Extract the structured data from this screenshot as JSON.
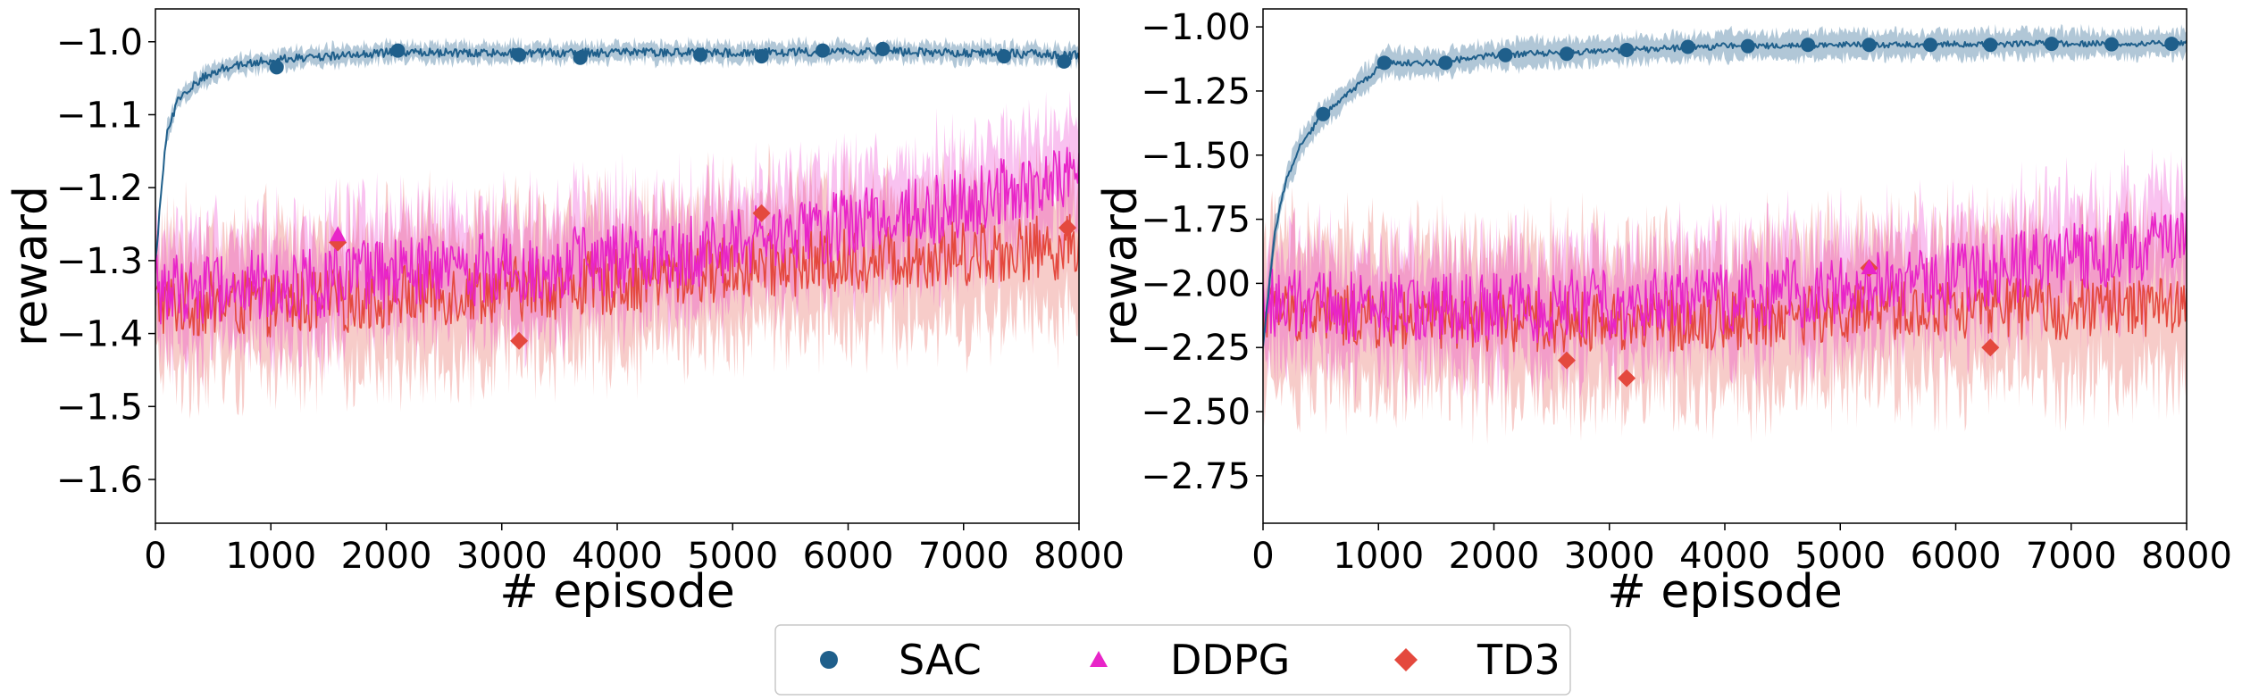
{
  "colors": {
    "SAC": "#1f5f8b",
    "DDPG": "#e825c8",
    "TD3": "#e4493e"
  },
  "legend": {
    "position": "bottom-center",
    "items": [
      {
        "name": "SAC",
        "marker": "circle"
      },
      {
        "name": "DDPG",
        "marker": "triangle"
      },
      {
        "name": "TD3",
        "marker": "diamond"
      }
    ]
  },
  "chart_data": [
    {
      "type": "line",
      "title": "",
      "xlabel": "# episode",
      "ylabel": "reward",
      "xlim": [
        0,
        8000
      ],
      "ylim": [
        -1.66,
        -0.955
      ],
      "xticks": [
        0,
        1000,
        2000,
        3000,
        4000,
        5000,
        6000,
        7000,
        8000
      ],
      "yticks": [
        -1.6,
        -1.5,
        -1.4,
        -1.3,
        -1.2,
        -1.1,
        -1.0
      ],
      "ytick_labels": [
        "−1.6",
        "−1.5",
        "−1.4",
        "−1.3",
        "−1.2",
        "−1.1",
        "−1.0"
      ],
      "grid": false,
      "series": [
        {
          "name": "SAC",
          "x": [
            0,
            100,
            200,
            400,
            600,
            800,
            1000,
            1500,
            2000,
            3000,
            4000,
            5000,
            6000,
            7000,
            8000
          ],
          "values": [
            -1.3,
            -1.12,
            -1.08,
            -1.05,
            -1.035,
            -1.03,
            -1.025,
            -1.02,
            -1.015,
            -1.015,
            -1.015,
            -1.015,
            -1.013,
            -1.015,
            -1.018
          ],
          "band": 0.012,
          "noise": 0.006,
          "markers": [
            {
              "x": 1050,
              "y": -1.035
            },
            {
              "x": 2100,
              "y": -1.012
            },
            {
              "x": 3150,
              "y": -1.018
            },
            {
              "x": 3680,
              "y": -1.022
            },
            {
              "x": 4720,
              "y": -1.018
            },
            {
              "x": 5250,
              "y": -1.02
            },
            {
              "x": 5780,
              "y": -1.012
            },
            {
              "x": 6300,
              "y": -1.01
            },
            {
              "x": 7350,
              "y": -1.02
            },
            {
              "x": 7870,
              "y": -1.027
            }
          ]
        },
        {
          "name": "DDPG",
          "x": [
            0,
            1000,
            2000,
            3000,
            4000,
            5000,
            6000,
            7000,
            8000
          ],
          "values": [
            -1.34,
            -1.335,
            -1.32,
            -1.31,
            -1.3,
            -1.28,
            -1.25,
            -1.22,
            -1.19
          ],
          "band": 0.07,
          "noise": 0.05,
          "markers": [
            {
              "x": 1580,
              "y": -1.265
            }
          ]
        },
        {
          "name": "TD3",
          "x": [
            0,
            1000,
            2000,
            3000,
            4000,
            5000,
            6000,
            7000,
            8000
          ],
          "values": [
            -1.36,
            -1.36,
            -1.35,
            -1.34,
            -1.33,
            -1.31,
            -1.3,
            -1.29,
            -1.28
          ],
          "band": 0.09,
          "noise": 0.045,
          "markers": [
            {
              "x": 1580,
              "y": -1.275
            },
            {
              "x": 3150,
              "y": -1.41
            },
            {
              "x": 5250,
              "y": -1.235
            },
            {
              "x": 7900,
              "y": -1.255
            }
          ]
        }
      ]
    },
    {
      "type": "line",
      "title": "",
      "xlabel": "# episode",
      "ylabel": "reward",
      "xlim": [
        0,
        8000
      ],
      "ylim": [
        -2.935,
        -0.93
      ],
      "xticks": [
        0,
        1000,
        2000,
        3000,
        4000,
        5000,
        6000,
        7000,
        8000
      ],
      "yticks": [
        -2.75,
        -2.5,
        -2.25,
        -2.0,
        -1.75,
        -1.5,
        -1.25,
        -1.0
      ],
      "ytick_labels": [
        "−2.75",
        "−2.50",
        "−2.25",
        "−2.00",
        "−1.75",
        "−1.50",
        "−1.25",
        "−1.00"
      ],
      "grid": false,
      "series": [
        {
          "name": "SAC",
          "x": [
            0,
            100,
            200,
            300,
            500,
            700,
            900,
            1050,
            1500,
            2000,
            2600,
            3200,
            4000,
            5000,
            6000,
            7000,
            8000
          ],
          "values": [
            -2.25,
            -1.8,
            -1.6,
            -1.48,
            -1.35,
            -1.27,
            -1.2,
            -1.14,
            -1.14,
            -1.11,
            -1.1,
            -1.09,
            -1.075,
            -1.07,
            -1.068,
            -1.065,
            -1.065
          ],
          "band": 0.05,
          "noise": 0.012,
          "markers": [
            {
              "x": 520,
              "y": -1.34
            },
            {
              "x": 1050,
              "y": -1.14
            },
            {
              "x": 1580,
              "y": -1.14
            },
            {
              "x": 2100,
              "y": -1.11
            },
            {
              "x": 2630,
              "y": -1.105
            },
            {
              "x": 3150,
              "y": -1.09
            },
            {
              "x": 3680,
              "y": -1.078
            },
            {
              "x": 4200,
              "y": -1.075
            },
            {
              "x": 4720,
              "y": -1.07
            },
            {
              "x": 5250,
              "y": -1.07
            },
            {
              "x": 5780,
              "y": -1.07
            },
            {
              "x": 6300,
              "y": -1.07
            },
            {
              "x": 6830,
              "y": -1.066
            },
            {
              "x": 7350,
              "y": -1.068
            },
            {
              "x": 7870,
              "y": -1.066
            }
          ]
        },
        {
          "name": "DDPG",
          "x": [
            0,
            1000,
            2000,
            3000,
            4000,
            5000,
            6000,
            7000,
            8000
          ],
          "values": [
            -2.08,
            -2.1,
            -2.1,
            -2.08,
            -2.06,
            -2.02,
            -1.98,
            -1.9,
            -1.82
          ],
          "band": 0.2,
          "noise": 0.14,
          "markers": [
            {
              "x": 5250,
              "y": -1.94
            }
          ]
        },
        {
          "name": "TD3",
          "x": [
            0,
            1000,
            2000,
            3000,
            4000,
            5000,
            6000,
            7000,
            8000
          ],
          "values": [
            -2.1,
            -2.14,
            -2.15,
            -2.15,
            -2.14,
            -2.12,
            -2.1,
            -2.1,
            -2.08
          ],
          "band": 0.28,
          "noise": 0.12,
          "markers": [
            {
              "x": 2630,
              "y": -2.3
            },
            {
              "x": 3150,
              "y": -2.37
            },
            {
              "x": 5250,
              "y": -1.94
            },
            {
              "x": 6300,
              "y": -2.25
            }
          ]
        }
      ]
    }
  ]
}
